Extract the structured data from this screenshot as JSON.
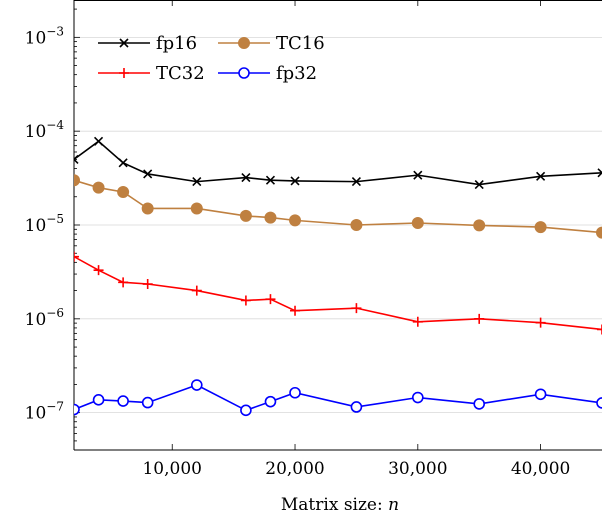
{
  "chart_data": {
    "type": "line",
    "title": "",
    "xlabel": "Matrix size: n",
    "ylabel": "",
    "y_scale": "log",
    "xlim": [
      2000,
      45000
    ],
    "ylim": [
      4e-08,
      0.0025
    ],
    "grid": "horizontal major",
    "legend_position": "top-left",
    "x_ticks": [
      10000,
      20000,
      30000,
      40000
    ],
    "x_tick_labels": [
      "10,000",
      "20,000",
      "30,000",
      "40,000"
    ],
    "y_ticks": [
      1e-07,
      1e-06,
      1e-05,
      0.0001,
      0.001
    ],
    "y_tick_labels": [
      {
        "base": "10",
        "exp": "−7"
      },
      {
        "base": "10",
        "exp": "−6"
      },
      {
        "base": "10",
        "exp": "−5"
      },
      {
        "base": "10",
        "exp": "−4"
      },
      {
        "base": "10",
        "exp": "−3"
      }
    ],
    "series": [
      {
        "name": "fp16",
        "color": "#000000",
        "marker": "x",
        "x": [
          2000,
          4000,
          6000,
          8000,
          12000,
          16000,
          18000,
          20000,
          25000,
          30000,
          35000,
          40000,
          45000
        ],
        "y": [
          5e-05,
          7.8e-05,
          4.6e-05,
          3.5e-05,
          2.9e-05,
          3.2e-05,
          3e-05,
          2.95e-05,
          2.9e-05,
          3.4e-05,
          2.7e-05,
          3.3e-05,
          3.6e-05
        ]
      },
      {
        "name": "TC16",
        "color": "#bf8040",
        "marker": "filled-circle",
        "x": [
          2000,
          4000,
          6000,
          8000,
          12000,
          16000,
          18000,
          20000,
          25000,
          30000,
          35000,
          40000,
          45000
        ],
        "y": [
          3e-05,
          2.5e-05,
          2.25e-05,
          1.5e-05,
          1.5e-05,
          1.25e-05,
          1.2e-05,
          1.12e-05,
          1e-05,
          1.05e-05,
          9.9e-06,
          9.5e-06,
          8.3e-06
        ]
      },
      {
        "name": "TC32",
        "color": "#ff0000",
        "marker": "plus",
        "x": [
          2000,
          4000,
          6000,
          8000,
          12000,
          16000,
          18000,
          20000,
          25000,
          30000,
          35000,
          40000,
          45000
        ],
        "y": [
          4.6e-06,
          3.3e-06,
          2.45e-06,
          2.35e-06,
          2e-06,
          1.57e-06,
          1.62e-06,
          1.22e-06,
          1.3e-06,
          9.3e-07,
          1e-06,
          9.1e-07,
          7.7e-07
        ]
      },
      {
        "name": "fp32",
        "color": "#0000ff",
        "marker": "open-circle",
        "x": [
          2000,
          4000,
          6000,
          8000,
          12000,
          16000,
          18000,
          20000,
          25000,
          30000,
          35000,
          40000,
          45000
        ],
        "y": [
          1.08e-07,
          1.37e-07,
          1.33e-07,
          1.28e-07,
          1.97e-07,
          1.06e-07,
          1.31e-07,
          1.63e-07,
          1.15e-07,
          1.45e-07,
          1.24e-07,
          1.57e-07,
          1.27e-07
        ]
      }
    ]
  },
  "legend": {
    "items": [
      "fp16",
      "TC16",
      "TC32",
      "fp32"
    ]
  }
}
